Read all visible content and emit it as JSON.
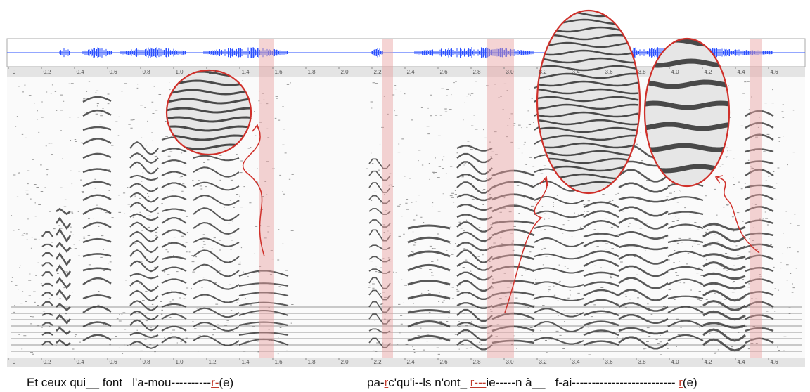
{
  "time_axis": {
    "xlim": [
      0,
      4.8
    ],
    "ticks": [
      0,
      0.2,
      0.4,
      0.6,
      0.8,
      {
        "value": 1,
        "label": "1.0"
      },
      1.2,
      1.4,
      1.6,
      1.8,
      {
        "value": 2,
        "label": "2.0"
      },
      2.2,
      2.4,
      2.6,
      2.8,
      {
        "value": 3,
        "label": "3.0"
      },
      3.2,
      3.4,
      3.6,
      3.8,
      {
        "value": 4,
        "label": "4.0"
      },
      4.2,
      4.4,
      4.6
    ]
  },
  "lyrics": [
    [
      {
        "text": "Et ceux qui__ font   l'a-mou----------"
      },
      {
        "text": "r-",
        "highlight": true
      },
      {
        "text": "(e)"
      }
    ],
    [
      {
        "text": "pa-"
      },
      {
        "text": "r",
        "highlight": true
      },
      {
        "text": "c'qu'i--ls n'ont_ "
      },
      {
        "text": "r---",
        "highlight": true
      },
      {
        "text": "ie-----n à__   f-ai-------------------------- "
      },
      {
        "text": "r",
        "highlight": true
      },
      {
        "text": "(e)"
      }
    ]
  ]
}
